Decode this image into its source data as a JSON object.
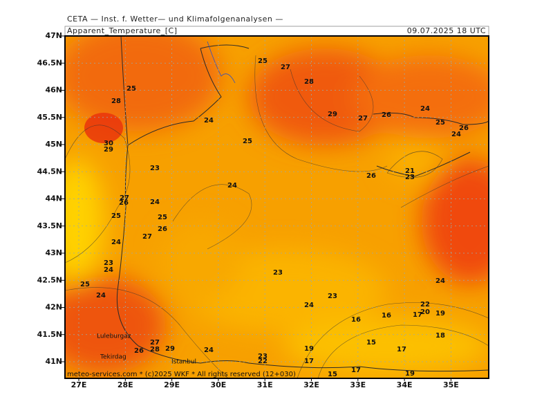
{
  "header": {
    "source": "CETA — Inst. f. Wetter— und Klimafolgenanalysen —",
    "title": "Apparent_Temperature_[C]",
    "date": "09.07.2025 18 UTC"
  },
  "latitudes": [
    "47N",
    "46.5N",
    "46N",
    "45.5N",
    "45N",
    "44.5N",
    "44N",
    "43.5N",
    "43N",
    "42.5N",
    "42N",
    "41.5N",
    "41N"
  ],
  "longitudes": [
    "27E",
    "28E",
    "29E",
    "30E",
    "31E",
    "32E",
    "33E",
    "34E",
    "35E"
  ],
  "contour_labels": [
    25,
    27,
    28,
    29,
    27,
    26,
    24,
    25,
    26,
    24,
    25,
    28,
    30,
    29,
    24,
    25,
    23,
    24,
    26,
    21,
    23,
    27,
    26,
    24,
    25,
    25,
    26,
    27,
    24,
    23,
    24,
    23,
    25,
    24,
    24,
    23,
    24,
    22,
    20,
    17,
    19,
    16,
    16,
    18,
    15,
    17,
    19,
    17,
    23,
    22,
    27,
    28,
    26,
    29,
    24,
    15,
    17,
    19
  ],
  "cities": [
    "Luleburgaz",
    "Tekirdag",
    "Istanbul"
  ],
  "footer": "meteo-services.com * (c)2025 WKF * All rights reserved (12+030)"
}
